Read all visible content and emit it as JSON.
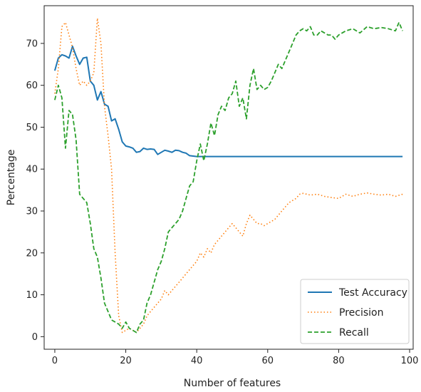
{
  "chart_data": {
    "type": "line",
    "title": "",
    "xlabel": "Number of features",
    "ylabel": "Percentage",
    "xlim": [
      -3,
      101
    ],
    "ylim": [
      -3,
      79
    ],
    "xticks": [
      0,
      20,
      40,
      60,
      80,
      100
    ],
    "yticks": [
      0,
      10,
      20,
      30,
      40,
      50,
      60,
      70
    ],
    "grid": false,
    "legend_position": "lower-right",
    "series": [
      {
        "name": "Test Accuracy",
        "style": "solid",
        "color": "#1f77b4",
        "points": [
          [
            0,
            63.5
          ],
          [
            1,
            66.5
          ],
          [
            2,
            67.3
          ],
          [
            3,
            67
          ],
          [
            4,
            66.5
          ],
          [
            5,
            69.3
          ],
          [
            6,
            67
          ],
          [
            7,
            65
          ],
          [
            8,
            66.5
          ],
          [
            9,
            66.7
          ],
          [
            10,
            61
          ],
          [
            11,
            60
          ],
          [
            12,
            56.5
          ],
          [
            13,
            58.5
          ],
          [
            14,
            55.5
          ],
          [
            15,
            55
          ],
          [
            16,
            51.5
          ],
          [
            17,
            52
          ],
          [
            18,
            49.5
          ],
          [
            19,
            46.5
          ],
          [
            20,
            45.5
          ],
          [
            21,
            45.3
          ],
          [
            22,
            45
          ],
          [
            23,
            44
          ],
          [
            24,
            44.2
          ],
          [
            25,
            45
          ],
          [
            26,
            44.7
          ],
          [
            27,
            44.8
          ],
          [
            28,
            44.7
          ],
          [
            29,
            43.5
          ],
          [
            30,
            44
          ],
          [
            31,
            44.5
          ],
          [
            32,
            44.3
          ],
          [
            33,
            44
          ],
          [
            34,
            44.5
          ],
          [
            35,
            44.4
          ],
          [
            36,
            44
          ],
          [
            37,
            43.8
          ],
          [
            38,
            43.2
          ],
          [
            40,
            43
          ],
          [
            50,
            43
          ],
          [
            60,
            43
          ],
          [
            70,
            43
          ],
          [
            80,
            43
          ],
          [
            90,
            43
          ],
          [
            98,
            43
          ]
        ]
      },
      {
        "name": "Precision",
        "style": "dotted",
        "color": "#ff7f0e",
        "points": [
          [
            0,
            58
          ],
          [
            1,
            64
          ],
          [
            2,
            74
          ],
          [
            3,
            75
          ],
          [
            4,
            72
          ],
          [
            5,
            69
          ],
          [
            6,
            64
          ],
          [
            7,
            60
          ],
          [
            8,
            61
          ],
          [
            9,
            60
          ],
          [
            10,
            61
          ],
          [
            11,
            63
          ],
          [
            12,
            76
          ],
          [
            13,
            70
          ],
          [
            14,
            55
          ],
          [
            15,
            48
          ],
          [
            16,
            40
          ],
          [
            17,
            20
          ],
          [
            18,
            5
          ],
          [
            19,
            1
          ],
          [
            20,
            1.5
          ],
          [
            21,
            2
          ],
          [
            22,
            1.5
          ],
          [
            23,
            1
          ],
          [
            24,
            2
          ],
          [
            25,
            3
          ],
          [
            26,
            5
          ],
          [
            27,
            6
          ],
          [
            28,
            7
          ],
          [
            29,
            8
          ],
          [
            30,
            9
          ],
          [
            31,
            11
          ],
          [
            32,
            10
          ],
          [
            33,
            11
          ],
          [
            34,
            12
          ],
          [
            35,
            13
          ],
          [
            36,
            14
          ],
          [
            37,
            15
          ],
          [
            38,
            16
          ],
          [
            39,
            17
          ],
          [
            40,
            18
          ],
          [
            41,
            20
          ],
          [
            42,
            19
          ],
          [
            43,
            21
          ],
          [
            44,
            20
          ],
          [
            45,
            22
          ],
          [
            46,
            23
          ],
          [
            47,
            24
          ],
          [
            48,
            25
          ],
          [
            49,
            26
          ],
          [
            50,
            27
          ],
          [
            51,
            26
          ],
          [
            52,
            25
          ],
          [
            53,
            24
          ],
          [
            54,
            27
          ],
          [
            55,
            29
          ],
          [
            56,
            28
          ],
          [
            57,
            27
          ],
          [
            58,
            27
          ],
          [
            59,
            26.5
          ],
          [
            60,
            27
          ],
          [
            61,
            27.5
          ],
          [
            62,
            28
          ],
          [
            63,
            29
          ],
          [
            64,
            30
          ],
          [
            65,
            31
          ],
          [
            66,
            32
          ],
          [
            67,
            32.5
          ],
          [
            68,
            33
          ],
          [
            69,
            34
          ],
          [
            70,
            34.2
          ],
          [
            72,
            33.8
          ],
          [
            74,
            34
          ],
          [
            76,
            33.5
          ],
          [
            78,
            33.2
          ],
          [
            80,
            33
          ],
          [
            82,
            34
          ],
          [
            84,
            33.5
          ],
          [
            86,
            34
          ],
          [
            88,
            34.3
          ],
          [
            90,
            34
          ],
          [
            92,
            33.8
          ],
          [
            94,
            34
          ],
          [
            96,
            33.5
          ],
          [
            98,
            34
          ]
        ]
      },
      {
        "name": "Recall",
        "style": "dashed",
        "color": "#2ca02c",
        "points": [
          [
            0,
            56.5
          ],
          [
            1,
            60
          ],
          [
            2,
            57
          ],
          [
            3,
            45
          ],
          [
            4,
            54
          ],
          [
            5,
            53
          ],
          [
            6,
            47
          ],
          [
            7,
            34
          ],
          [
            8,
            33
          ],
          [
            9,
            32
          ],
          [
            10,
            27
          ],
          [
            11,
            21
          ],
          [
            12,
            19
          ],
          [
            13,
            14
          ],
          [
            14,
            8
          ],
          [
            15,
            6
          ],
          [
            16,
            4
          ],
          [
            17,
            3.5
          ],
          [
            18,
            3
          ],
          [
            19,
            2
          ],
          [
            20,
            3.5
          ],
          [
            21,
            2
          ],
          [
            22,
            1.5
          ],
          [
            23,
            1
          ],
          [
            24,
            3
          ],
          [
            25,
            4
          ],
          [
            26,
            8
          ],
          [
            27,
            10
          ],
          [
            28,
            13
          ],
          [
            29,
            16
          ],
          [
            30,
            18
          ],
          [
            31,
            21
          ],
          [
            32,
            25
          ],
          [
            33,
            26
          ],
          [
            34,
            27
          ],
          [
            35,
            28
          ],
          [
            36,
            30
          ],
          [
            37,
            33
          ],
          [
            38,
            36
          ],
          [
            39,
            37
          ],
          [
            40,
            42
          ],
          [
            41,
            46
          ],
          [
            42,
            42
          ],
          [
            43,
            46
          ],
          [
            44,
            51
          ],
          [
            45,
            48
          ],
          [
            46,
            53
          ],
          [
            47,
            55
          ],
          [
            48,
            54
          ],
          [
            49,
            57
          ],
          [
            50,
            58
          ],
          [
            51,
            61
          ],
          [
            52,
            55
          ],
          [
            53,
            57
          ],
          [
            54,
            52
          ],
          [
            55,
            60
          ],
          [
            56,
            64
          ],
          [
            57,
            59
          ],
          [
            58,
            60
          ],
          [
            59,
            59
          ],
          [
            60,
            59.5
          ],
          [
            61,
            61
          ],
          [
            62,
            63
          ],
          [
            63,
            65
          ],
          [
            64,
            64
          ],
          [
            65,
            66
          ],
          [
            66,
            68
          ],
          [
            67,
            70
          ],
          [
            68,
            72
          ],
          [
            69,
            73
          ],
          [
            70,
            73.5
          ],
          [
            71,
            73
          ],
          [
            72,
            74
          ],
          [
            73,
            72
          ],
          [
            74,
            72
          ],
          [
            75,
            73
          ],
          [
            76,
            72.5
          ],
          [
            77,
            72
          ],
          [
            78,
            72
          ],
          [
            79,
            71
          ],
          [
            80,
            72
          ],
          [
            82,
            73
          ],
          [
            84,
            73.5
          ],
          [
            86,
            72.5
          ],
          [
            88,
            74
          ],
          [
            90,
            73.5
          ],
          [
            92,
            73.8
          ],
          [
            94,
            73.5
          ],
          [
            96,
            73
          ],
          [
            97,
            75
          ],
          [
            98,
            73
          ]
        ]
      }
    ]
  }
}
